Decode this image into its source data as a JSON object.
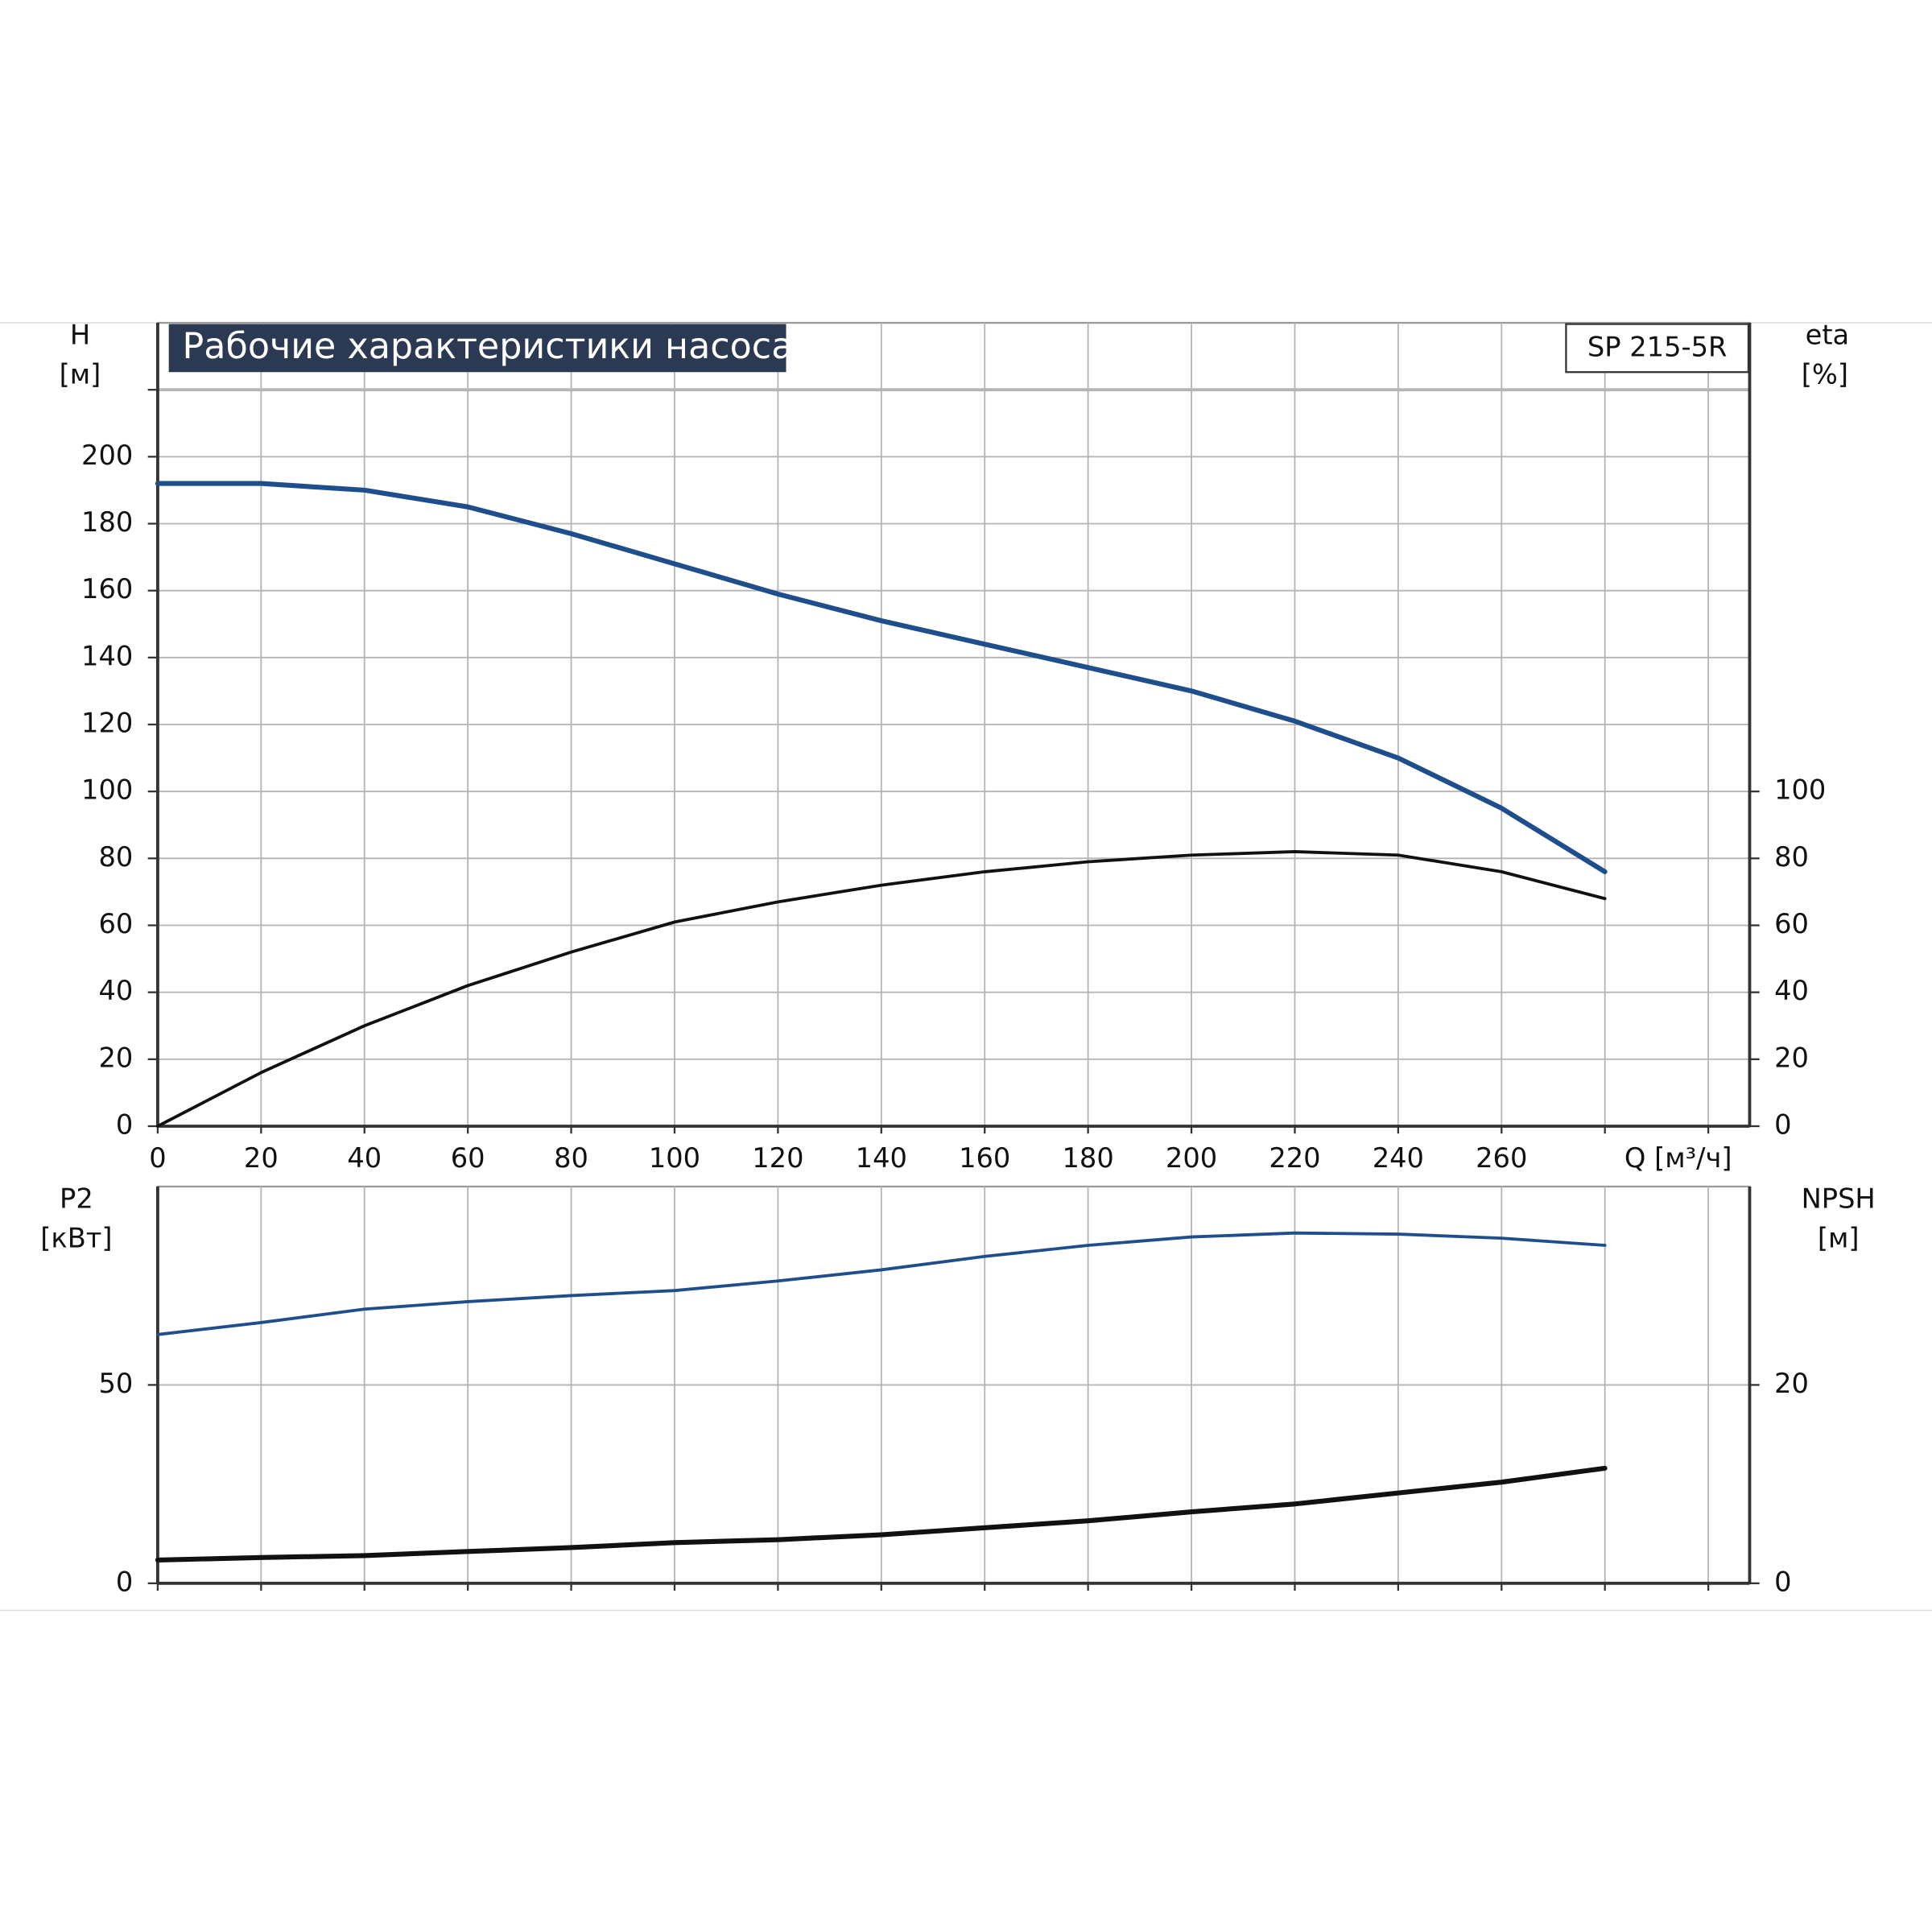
{
  "chart_data": [
    {
      "type": "line",
      "title": "Рабочие характеристики насоса",
      "model": "SP 215-5R",
      "ylabel": "H",
      "yunit": "[м]",
      "y2label": "eta",
      "y2unit": "[%]",
      "xlabel": "Q [м³/ч]",
      "x": [
        0,
        20,
        40,
        60,
        80,
        100,
        120,
        140,
        160,
        180,
        200,
        220,
        240,
        260,
        280
      ],
      "series": [
        {
          "color": "#1f4e8c",
          "axis": "y",
          "values": [
            192,
            192,
            190,
            185,
            177,
            168,
            159,
            151,
            144,
            137,
            130,
            121,
            110,
            95,
            76
          ]
        },
        {
          "color": "#111111",
          "axis": "y2",
          "values": [
            0,
            16,
            30,
            42,
            52,
            61,
            67,
            72,
            76,
            79,
            81,
            82,
            81,
            76,
            68
          ]
        }
      ],
      "xlim": [
        0,
        308
      ],
      "xticks": [
        0,
        20,
        40,
        60,
        80,
        100,
        120,
        140,
        160,
        180,
        200,
        220,
        240,
        260,
        {
          "value": 280,
          "label": null
        },
        {
          "value": 300,
          "label": null
        }
      ],
      "ylim": [
        0,
        240
      ],
      "yticks": [
        0,
        20,
        40,
        60,
        80,
        100,
        120,
        140,
        160,
        180,
        200,
        {
          "value": 220,
          "label": null
        }
      ],
      "y2lim": [
        0,
        240
      ],
      "y2ticks": [
        0,
        20,
        40,
        60,
        80,
        100
      ],
      "grid": true
    },
    {
      "type": "line",
      "ylabel": "P2",
      "yunit": "[кВт]",
      "y2label": "NPSH",
      "y2unit": "[м]",
      "x": [
        0,
        20,
        40,
        60,
        80,
        100,
        120,
        140,
        160,
        180,
        200,
        220,
        240,
        260,
        280
      ],
      "series": [
        {
          "color": "#1f4e8c",
          "axis": "y",
          "values": [
            62.7,
            65.7,
            69.1,
            71,
            72.5,
            73.8,
            76.2,
            79,
            82.4,
            85.2,
            87.3,
            88.3,
            88,
            87,
            85.2
          ]
        },
        {
          "color": "#111111",
          "axis": "y2",
          "values": [
            2.35,
            2.6,
            2.8,
            3.2,
            3.6,
            4.1,
            4.4,
            4.9,
            5.6,
            6.3,
            7.2,
            8.0,
            9.1,
            10.2,
            11.6
          ]
        }
      ],
      "xlim": [
        0,
        308
      ],
      "ylim": [
        0,
        100
      ],
      "yticks": [
        0,
        50
      ],
      "y2lim": [
        0,
        40
      ],
      "y2ticks": [
        0,
        20
      ],
      "grid": true
    }
  ]
}
